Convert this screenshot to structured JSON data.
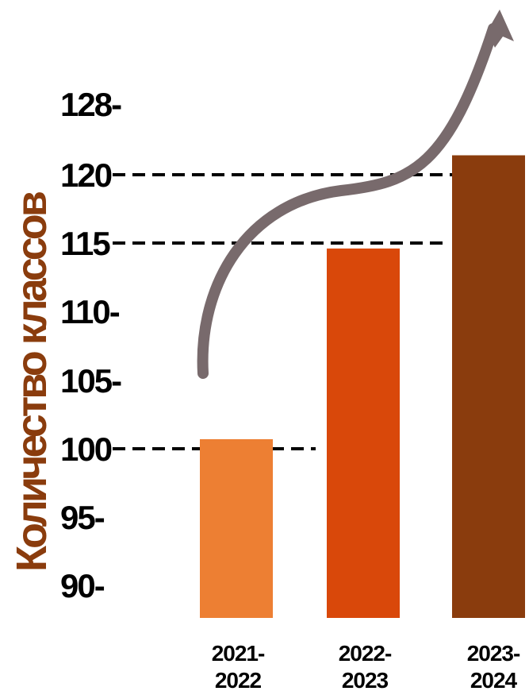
{
  "chart_data": {
    "type": "bar",
    "ylabel": "Количество классов",
    "categories": [
      {
        "line1": "2021-",
        "line2": "2022"
      },
      {
        "line1": "2022-",
        "line2": "2023"
      },
      {
        "line1": "2023-",
        "line2": "2024"
      }
    ],
    "values": [
      100.7,
      114.6,
      122.2
    ],
    "bar_colors": [
      "#ED7F33",
      "#D9480A",
      "#8A3C0D"
    ],
    "ylabel_color": "#8A3C0D",
    "arrow_color": "#786A6C",
    "ytick_labels": [
      {
        "value": 90,
        "label": "90-"
      },
      {
        "value": 95,
        "label": "95-"
      },
      {
        "value": 100,
        "label": "100"
      },
      {
        "value": 105,
        "label": "105-"
      },
      {
        "value": 110,
        "label": "110-"
      },
      {
        "value": 115,
        "label": "115"
      },
      {
        "value": 120,
        "label": "120"
      },
      {
        "value": 128,
        "label": "128-"
      }
    ],
    "reference_lines": [
      {
        "value": 100,
        "to_category": 0
      },
      {
        "value": 115,
        "to_category": 1
      },
      {
        "value": 120,
        "to_category": 2
      }
    ],
    "trend_arrow": true,
    "grid": false,
    "legend": "none"
  }
}
